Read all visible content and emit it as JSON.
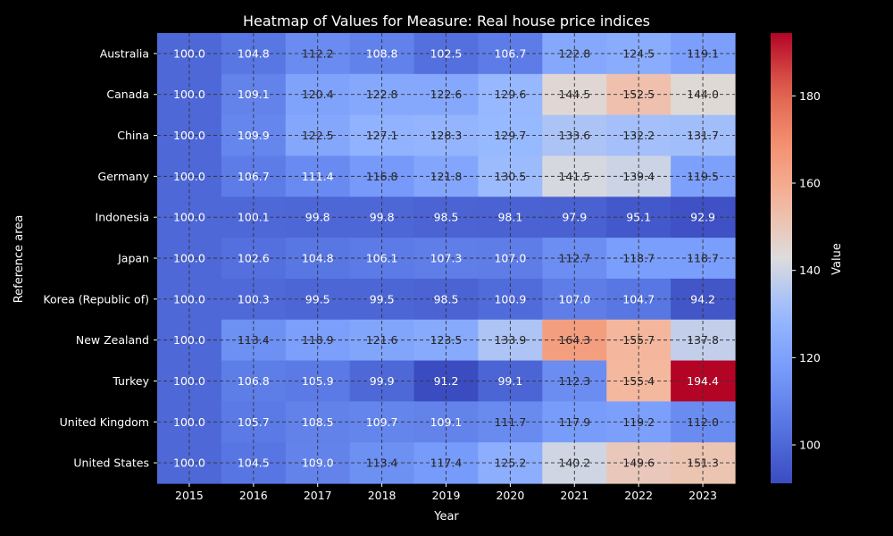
{
  "chart_data": {
    "type": "heatmap",
    "title": "Heatmap of Values for Measure: Real house price indices",
    "xlabel": "Year",
    "ylabel": "Reference area",
    "colorbar_label": "Value",
    "colormap": "coolwarm",
    "vmin": 91.2,
    "vmax": 194.4,
    "colorbar_ticks": [
      100,
      120,
      140,
      160,
      180
    ],
    "grid": true,
    "x": [
      "2015",
      "2016",
      "2017",
      "2018",
      "2019",
      "2020",
      "2021",
      "2022",
      "2023"
    ],
    "y": [
      "Australia",
      "Canada",
      "China",
      "Germany",
      "Indonesia",
      "Japan",
      "Korea (Republic of)",
      "New Zealand",
      "Turkey",
      "United Kingdom",
      "United States"
    ],
    "values": [
      [
        100.0,
        104.8,
        112.2,
        108.8,
        102.5,
        106.7,
        122.8,
        124.5,
        119.1
      ],
      [
        100.0,
        109.1,
        120.4,
        122.8,
        122.6,
        129.6,
        144.5,
        152.5,
        144.0
      ],
      [
        100.0,
        109.9,
        122.5,
        127.1,
        128.3,
        129.7,
        133.6,
        132.2,
        131.7
      ],
      [
        100.0,
        106.7,
        111.4,
        116.8,
        121.8,
        130.5,
        141.5,
        139.4,
        119.5
      ],
      [
        100.0,
        100.1,
        99.8,
        99.8,
        98.5,
        98.1,
        97.9,
        95.1,
        92.9
      ],
      [
        100.0,
        102.6,
        104.8,
        106.1,
        107.3,
        107.0,
        112.7,
        118.7,
        118.7
      ],
      [
        100.0,
        100.3,
        99.5,
        99.5,
        98.5,
        100.9,
        107.0,
        104.7,
        94.2
      ],
      [
        100.0,
        113.4,
        118.9,
        121.6,
        123.5,
        133.9,
        164.3,
        155.7,
        137.8
      ],
      [
        100.0,
        106.8,
        105.9,
        99.9,
        91.2,
        99.1,
        112.3,
        155.4,
        194.4
      ],
      [
        100.0,
        105.7,
        108.5,
        109.7,
        109.1,
        111.7,
        117.9,
        119.2,
        112.0
      ],
      [
        100.0,
        104.5,
        109.0,
        113.4,
        117.4,
        125.2,
        140.2,
        149.6,
        151.3
      ]
    ]
  }
}
